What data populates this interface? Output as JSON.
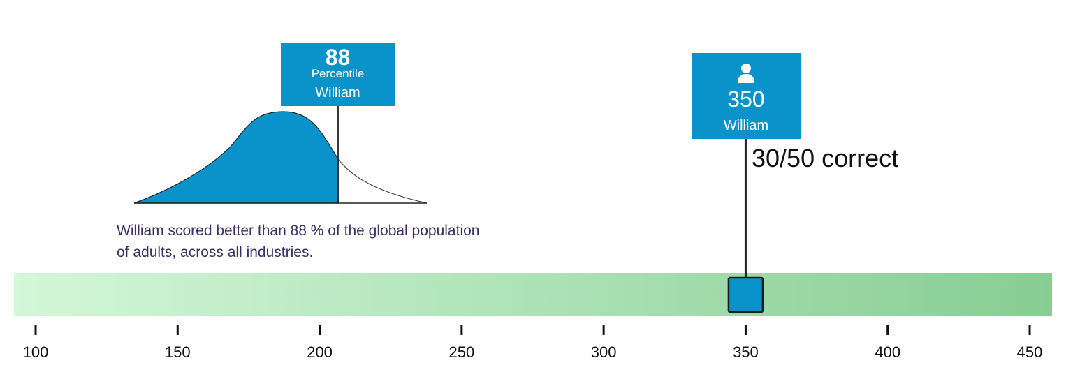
{
  "colors": {
    "accent": "#0a93cb",
    "bar_start": "#d3f7d8",
    "bar_end": "#88cd94",
    "text_dark": "#111111",
    "description_text": "#3d2e6b"
  },
  "percentile_flag": {
    "value": "88",
    "label": "Percentile",
    "name": "William"
  },
  "score_flag": {
    "icon": "user-icon",
    "value": "350",
    "name": "William"
  },
  "correct_text": "30/50 correct",
  "description": "William scored better than 88 % of the global population of adults, across all industries.",
  "chart_data": {
    "type": "scale",
    "axis": {
      "min": 100,
      "max": 450,
      "ticks": [
        100,
        150,
        200,
        250,
        300,
        350,
        400,
        450
      ]
    },
    "marker_value": 350,
    "percentile": 88,
    "distribution": "bell curve, shaded up to the 88th percentile"
  }
}
